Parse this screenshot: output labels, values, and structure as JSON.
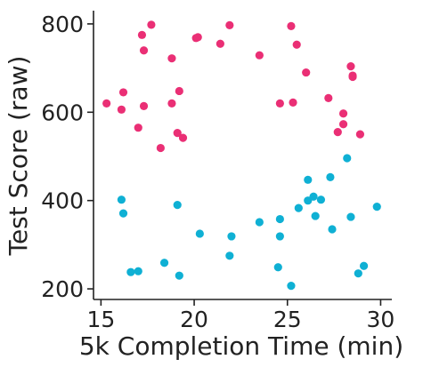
{
  "chart_data": {
    "type": "scatter",
    "title": "",
    "xlabel": "5k Completion Time (min)",
    "ylabel": "Test Score (raw)",
    "xlim": [
      14.6,
      30.6
    ],
    "ylim": [
      176,
      830
    ],
    "xticks": [
      15,
      20,
      25,
      30
    ],
    "yticks": [
      200,
      400,
      600,
      800
    ],
    "grid": false,
    "legend": "none",
    "series": [
      {
        "color": "#ea2f75",
        "points": [
          [
            15.3,
            620
          ],
          [
            16.1,
            606
          ],
          [
            16.2,
            645
          ],
          [
            17.0,
            565
          ],
          [
            17.2,
            775
          ],
          [
            17.3,
            740
          ],
          [
            17.3,
            614
          ],
          [
            17.7,
            798
          ],
          [
            18.2,
            519
          ],
          [
            18.8,
            722
          ],
          [
            18.8,
            620
          ],
          [
            19.1,
            553
          ],
          [
            19.2,
            648
          ],
          [
            19.4,
            542
          ],
          [
            20.1,
            768
          ],
          [
            20.2,
            770
          ],
          [
            21.4,
            755
          ],
          [
            21.9,
            797
          ],
          [
            23.5,
            729
          ],
          [
            24.6,
            620
          ],
          [
            25.2,
            795
          ],
          [
            25.3,
            622
          ],
          [
            25.5,
            753
          ],
          [
            26.0,
            690
          ],
          [
            27.2,
            632
          ],
          [
            27.7,
            555
          ],
          [
            28.0,
            597
          ],
          [
            28.0,
            573
          ],
          [
            28.4,
            704
          ],
          [
            28.5,
            683
          ],
          [
            28.5,
            680
          ],
          [
            28.9,
            550
          ]
        ]
      },
      {
        "color": "#0fb0d4",
        "points": [
          [
            16.1,
            402
          ],
          [
            16.2,
            371
          ],
          [
            16.6,
            238
          ],
          [
            17.0,
            240
          ],
          [
            18.4,
            259
          ],
          [
            19.1,
            390
          ],
          [
            19.2,
            230
          ],
          [
            20.3,
            325
          ],
          [
            21.9,
            275
          ],
          [
            22.0,
            319
          ],
          [
            23.5,
            351
          ],
          [
            24.5,
            249
          ],
          [
            24.6,
            319
          ],
          [
            24.6,
            358
          ],
          [
            25.2,
            207
          ],
          [
            25.6,
            383
          ],
          [
            26.1,
            447
          ],
          [
            26.1,
            400
          ],
          [
            26.4,
            409
          ],
          [
            26.5,
            365
          ],
          [
            26.8,
            402
          ],
          [
            27.3,
            453
          ],
          [
            27.4,
            335
          ],
          [
            28.2,
            496
          ],
          [
            28.4,
            363
          ],
          [
            28.8,
            235
          ],
          [
            29.1,
            252
          ],
          [
            29.8,
            386
          ]
        ]
      }
    ]
  }
}
